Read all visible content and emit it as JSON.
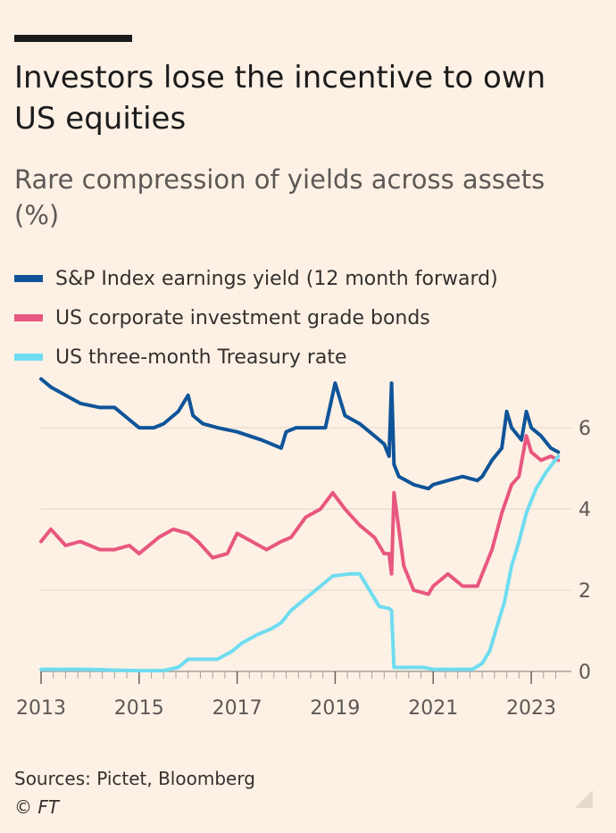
{
  "header": {
    "title": "Investors lose the incentive to own US equities",
    "subtitle": "Rare compression of yields across assets (%)"
  },
  "footer": {
    "source": "Sources: Pictet, Bloomberg",
    "credit": "© FT"
  },
  "chart_data": {
    "type": "line",
    "title": "Investors lose the incentive to own US equities",
    "subtitle": "Rare compression of yields across assets (%)",
    "xlim": [
      2013.0,
      2023.6
    ],
    "ylim": [
      0,
      7.3
    ],
    "x_ticks": [
      2013,
      2015,
      2017,
      2019,
      2021,
      2023
    ],
    "y_ticks": [
      0,
      2,
      4,
      6
    ],
    "grid": true,
    "legend_position": "top",
    "series": [
      {
        "name": "S&P Index earnings yield (12 month forward)",
        "color": "#0f5499",
        "x": [
          2013.0,
          2013.2,
          2013.5,
          2013.8,
          2014.2,
          2014.5,
          2014.8,
          2015.0,
          2015.3,
          2015.5,
          2015.8,
          2016.0,
          2016.1,
          2016.3,
          2016.6,
          2017.0,
          2017.5,
          2017.9,
          2018.0,
          2018.2,
          2018.5,
          2018.8,
          2019.0,
          2019.2,
          2019.5,
          2019.8,
          2020.0,
          2020.1,
          2020.15,
          2020.2,
          2020.3,
          2020.6,
          2020.9,
          2021.0,
          2021.3,
          2021.6,
          2021.9,
          2022.0,
          2022.2,
          2022.4,
          2022.5,
          2022.6,
          2022.8,
          2022.9,
          2023.0,
          2023.2,
          2023.4,
          2023.55
        ],
        "values": [
          7.2,
          7.0,
          6.8,
          6.6,
          6.5,
          6.5,
          6.2,
          6.0,
          6.0,
          6.1,
          6.4,
          6.8,
          6.3,
          6.1,
          6.0,
          5.9,
          5.7,
          5.5,
          5.9,
          6.0,
          6.0,
          6.0,
          7.1,
          6.3,
          6.1,
          5.8,
          5.6,
          5.3,
          7.1,
          5.1,
          4.8,
          4.6,
          4.5,
          4.6,
          4.7,
          4.8,
          4.7,
          4.8,
          5.2,
          5.5,
          6.4,
          6.0,
          5.7,
          6.4,
          6.0,
          5.8,
          5.5,
          5.4
        ]
      },
      {
        "name": "US corporate investment grade bonds",
        "color": "#e8577f",
        "x": [
          2013.0,
          2013.2,
          2013.5,
          2013.8,
          2014.2,
          2014.5,
          2014.8,
          2015.0,
          2015.4,
          2015.7,
          2016.0,
          2016.2,
          2016.5,
          2016.8,
          2017.0,
          2017.3,
          2017.6,
          2017.9,
          2018.1,
          2018.4,
          2018.7,
          2018.95,
          2019.2,
          2019.5,
          2019.8,
          2020.0,
          2020.1,
          2020.15,
          2020.2,
          2020.4,
          2020.6,
          2020.9,
          2021.0,
          2021.3,
          2021.6,
          2021.9,
          2022.0,
          2022.2,
          2022.4,
          2022.6,
          2022.75,
          2022.9,
          2023.0,
          2023.2,
          2023.4,
          2023.55
        ],
        "values": [
          3.2,
          3.5,
          3.1,
          3.2,
          3.0,
          3.0,
          3.1,
          2.9,
          3.3,
          3.5,
          3.4,
          3.2,
          2.8,
          2.9,
          3.4,
          3.2,
          3.0,
          3.2,
          3.3,
          3.8,
          4.0,
          4.4,
          4.0,
          3.6,
          3.3,
          2.9,
          2.9,
          2.4,
          4.4,
          2.6,
          2.0,
          1.9,
          2.1,
          2.4,
          2.1,
          2.1,
          2.4,
          3.0,
          3.9,
          4.6,
          4.8,
          5.8,
          5.4,
          5.2,
          5.3,
          5.2
        ]
      },
      {
        "name": "US three-month Treasury rate",
        "color": "#6fdcf0",
        "x": [
          2013.0,
          2013.5,
          2014.0,
          2014.5,
          2015.0,
          2015.5,
          2015.8,
          2016.0,
          2016.3,
          2016.6,
          2016.9,
          2017.1,
          2017.4,
          2017.7,
          2017.9,
          2018.1,
          2018.4,
          2018.7,
          2018.95,
          2019.3,
          2019.5,
          2019.7,
          2019.9,
          2020.1,
          2020.15,
          2020.2,
          2020.5,
          2020.8,
          2021.0,
          2021.4,
          2021.8,
          2022.0,
          2022.15,
          2022.3,
          2022.45,
          2022.6,
          2022.75,
          2022.9,
          2023.1,
          2023.3,
          2023.55
        ],
        "values": [
          0.05,
          0.05,
          0.05,
          0.03,
          0.02,
          0.02,
          0.1,
          0.3,
          0.3,
          0.3,
          0.5,
          0.7,
          0.9,
          1.05,
          1.2,
          1.5,
          1.8,
          2.1,
          2.35,
          2.4,
          2.4,
          2.0,
          1.6,
          1.55,
          1.5,
          0.1,
          0.1,
          0.1,
          0.05,
          0.05,
          0.05,
          0.2,
          0.5,
          1.1,
          1.7,
          2.6,
          3.2,
          3.9,
          4.5,
          4.9,
          5.3
        ]
      }
    ]
  }
}
